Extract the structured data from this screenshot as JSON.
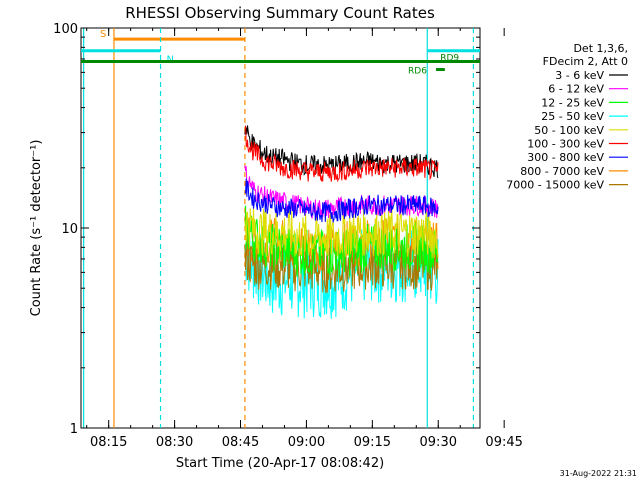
{
  "chart_data": {
    "type": "line",
    "title": "RHESSI Observing Summary Count Rates",
    "xlabel": "Start Time (20-Apr-17 08:08:42)",
    "ylabel": "Count Rate (s⁻¹ detector⁻¹)",
    "yscale": "log",
    "ylim": [
      1,
      100
    ],
    "y_ticks": [
      "1",
      "10",
      "100"
    ],
    "xlim_minutes_after_0800": [
      8.7,
      99.5
    ],
    "x_ticks": [
      "08:15",
      "08:30",
      "08:45",
      "09:00",
      "09:15",
      "09:30",
      "09:45"
    ],
    "x_tick_minutes": [
      15,
      30,
      45,
      60,
      75,
      90,
      105
    ],
    "legend_header": [
      "Det 1,3,6,",
      "FDecim 2, Att 0"
    ],
    "legend_placement": "right",
    "data_window_minutes_after_0800": [
      46.0,
      90.0
    ],
    "series": [
      {
        "name": "3 - 6 keV",
        "color": "#000000",
        "x": [
          46,
          47,
          48,
          50,
          52,
          55,
          58,
          62,
          66,
          70,
          74,
          78,
          82,
          86,
          90
        ],
        "values": [
          32,
          28,
          26,
          24,
          22.5,
          22,
          21,
          20.5,
          20.5,
          21,
          21.5,
          21,
          21,
          21,
          20
        ]
      },
      {
        "name": "6 - 12 keV",
        "color": "#ff00ff",
        "x": [
          46,
          47,
          48,
          50,
          52,
          55,
          58,
          62,
          66,
          70,
          74,
          78,
          82,
          86,
          90
        ],
        "values": [
          19,
          17,
          15.5,
          14.5,
          14,
          13.5,
          13,
          12.5,
          12.5,
          13,
          13,
          13,
          13,
          13,
          12.5
        ]
      },
      {
        "name": "12 - 25 keV",
        "color": "#00ff00",
        "x": [
          46,
          47,
          48,
          50,
          52,
          55,
          58,
          62,
          66,
          70,
          74,
          78,
          82,
          86,
          90
        ],
        "values": [
          10,
          9.5,
          9,
          8.5,
          8,
          8,
          7.5,
          7.5,
          7.5,
          7.5,
          8,
          8,
          8,
          8,
          7.5
        ]
      },
      {
        "name": "25 - 50 keV",
        "color": "#00ffff",
        "x": [
          46,
          47,
          48,
          50,
          52,
          55,
          58,
          62,
          66,
          70,
          74,
          78,
          82,
          86,
          90
        ],
        "values": [
          8,
          7,
          6.5,
          6,
          5.5,
          5.5,
          5.5,
          5.5,
          5.5,
          6,
          6.5,
          6.5,
          6.5,
          6.5,
          6
        ]
      },
      {
        "name": "50 - 100 keV",
        "color": "#dddd00",
        "x": [
          46,
          47,
          48,
          50,
          52,
          55,
          58,
          62,
          66,
          70,
          74,
          78,
          82,
          86,
          90
        ],
        "values": [
          11,
          10.5,
          10,
          9.5,
          9.5,
          9.5,
          9,
          9,
          9,
          9.5,
          9.5,
          9.5,
          9.5,
          9.5,
          9
        ]
      },
      {
        "name": "100 - 300 keV",
        "color": "#ff0000",
        "x": [
          46,
          47,
          48,
          50,
          52,
          55,
          58,
          62,
          66,
          70,
          74,
          78,
          82,
          86,
          90
        ],
        "values": [
          30,
          26,
          24,
          22,
          21,
          20,
          19.5,
          19,
          19,
          19.5,
          20,
          20,
          20,
          20,
          19
        ]
      },
      {
        "name": "300 - 800 keV",
        "color": "#0000ff",
        "x": [
          46,
          47,
          48,
          50,
          52,
          55,
          58,
          62,
          66,
          70,
          74,
          78,
          82,
          86,
          90
        ],
        "values": [
          16,
          15,
          14,
          13.5,
          13,
          12.5,
          12.5,
          12,
          12,
          12.5,
          13,
          13,
          13,
          13,
          12.5
        ]
      },
      {
        "name": "800 - 7000 keV",
        "color": "#ff8c00",
        "x": [
          46,
          47,
          48,
          50,
          52,
          55,
          58,
          62,
          66,
          70,
          74,
          78,
          82,
          86,
          90
        ],
        "values": [
          9.5,
          9,
          8.5,
          8.5,
          8.5,
          8.5,
          8,
          8,
          8,
          8.5,
          8.5,
          8.5,
          8.5,
          8.5,
          8
        ]
      },
      {
        "name": "7000 - 15000 keV",
        "color": "#aa7700",
        "x": [
          46,
          47,
          48,
          50,
          52,
          55,
          58,
          62,
          66,
          70,
          74,
          78,
          82,
          86,
          90
        ],
        "values": [
          7,
          6.8,
          6.5,
          6.5,
          6.5,
          6.3,
          6.3,
          6.2,
          6.2,
          6.3,
          6.5,
          6.5,
          6.5,
          6.5,
          6.3
        ]
      }
    ],
    "markers": [
      {
        "label": "S",
        "color": "#ff8c00",
        "style": "solid",
        "x": 16.2,
        "bar": [
          16.2,
          46.0
        ],
        "bar_y": 88
      },
      {
        "label": "",
        "color": "#ff8c00",
        "style": "dashed",
        "x": 46.0
      },
      {
        "label": "N",
        "color": "#00e0e0",
        "style": "dashed",
        "x": 26.8,
        "bar": [
          8.7,
          26.8
        ],
        "bar_y": 77
      },
      {
        "label": "",
        "color": "#00e0e0",
        "style": "solid",
        "x": 9.3
      },
      {
        "label": "",
        "color": "#00e0e0",
        "style": "solid",
        "x": 87.5,
        "bar": [
          87.5,
          99.5
        ],
        "bar_y": 77
      },
      {
        "label": "",
        "color": "#00e0e0",
        "style": "dashed",
        "x": 98.0
      }
    ],
    "green_bars": [
      {
        "label": "",
        "color": "#008800",
        "bar": [
          8.7,
          99.5
        ],
        "y": 68
      },
      {
        "label": "RD9",
        "color": "#008800",
        "bar": [
          88.5,
          90.0
        ],
        "y": 68
      },
      {
        "label": "RD6",
        "color": "#008800",
        "bar": [
          89.5,
          91.5
        ],
        "y": 62
      }
    ],
    "footer": "31-Aug-2022 21:31"
  }
}
